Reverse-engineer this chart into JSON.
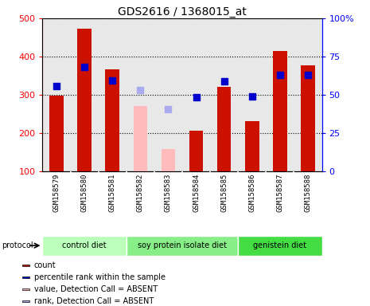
{
  "title": "GDS2616 / 1368015_at",
  "samples": [
    "GSM158579",
    "GSM158580",
    "GSM158581",
    "GSM158582",
    "GSM158583",
    "GSM158584",
    "GSM158585",
    "GSM158586",
    "GSM158587",
    "GSM158588"
  ],
  "count_values": [
    298,
    473,
    367,
    null,
    null,
    207,
    320,
    232,
    414,
    378
  ],
  "count_absent": [
    null,
    null,
    null,
    271,
    158,
    null,
    null,
    null,
    null,
    null
  ],
  "rank_values": [
    322,
    372,
    338,
    null,
    null,
    293,
    335,
    296,
    353,
    353
  ],
  "rank_absent": [
    null,
    null,
    null,
    313,
    263,
    null,
    null,
    null,
    null,
    null
  ],
  "ylim_left": [
    100,
    500
  ],
  "ylim_right": [
    0,
    100
  ],
  "yticks_left": [
    100,
    200,
    300,
    400,
    500
  ],
  "yticks_right": [
    0,
    25,
    50,
    75,
    100
  ],
  "ytick_labels_right": [
    "0",
    "25",
    "50",
    "75",
    "100%"
  ],
  "protocol_groups": [
    {
      "label": "control diet",
      "start": 0,
      "end": 3,
      "color": "#bbffbb"
    },
    {
      "label": "soy protein isolate diet",
      "start": 3,
      "end": 7,
      "color": "#88ee88"
    },
    {
      "label": "genistein diet",
      "start": 7,
      "end": 10,
      "color": "#44dd44"
    }
  ],
  "bar_color_present": "#cc1100",
  "bar_color_absent": "#ffbbbb",
  "dot_color_present": "#0000cc",
  "dot_color_absent": "#aaaaee",
  "bar_width": 0.5,
  "dot_size": 30,
  "bg_color": "#ffffff",
  "legend_items": [
    {
      "label": "count",
      "color": "#cc1100"
    },
    {
      "label": "percentile rank within the sample",
      "color": "#0000cc"
    },
    {
      "label": "value, Detection Call = ABSENT",
      "color": "#ffbbbb"
    },
    {
      "label": "rank, Detection Call = ABSENT",
      "color": "#aaaaee"
    }
  ],
  "plot_bg": "#e8e8e8",
  "sample_bg": "#d0d0d0"
}
